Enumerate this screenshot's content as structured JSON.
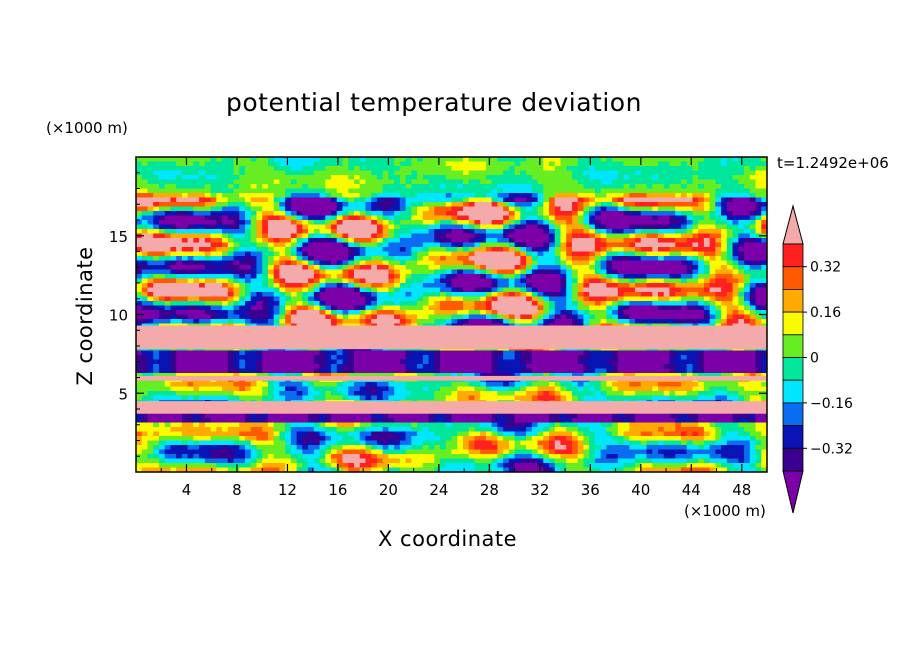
{
  "chart_data": {
    "type": "heatmap",
    "title": "potential temperature deviation",
    "xlabel": "X coordinate",
    "ylabel": "Z coordinate",
    "x_units": "(×1000 m)",
    "y_units": "(×1000 m)",
    "time_label": "t=1.2492e+06",
    "xlim": [
      0,
      50
    ],
    "ylim": [
      0,
      20
    ],
    "x_ticks": [
      4,
      8,
      12,
      16,
      20,
      24,
      28,
      32,
      36,
      40,
      44,
      48
    ],
    "y_ticks": [
      5,
      10,
      15
    ],
    "colorbar": {
      "levels": [
        -0.4,
        -0.32,
        -0.24,
        -0.16,
        -0.08,
        0,
        0.08,
        0.16,
        0.24,
        0.32,
        0.4
      ],
      "labeled_ticks": [
        0.32,
        0.16,
        0,
        -0.16,
        -0.32
      ],
      "tick_labels": [
        "0.32",
        "0.16",
        "0",
        "−0.16",
        "−0.32"
      ],
      "colors": [
        "#7b00a8",
        "#3a0090",
        "#0a14b4",
        "#0a6cf0",
        "#00e6ff",
        "#00e69a",
        "#66ee22",
        "#fafa00",
        "#ffaa00",
        "#ff5a00",
        "#ff2020",
        "#f4aaaa"
      ]
    },
    "bands": [
      {
        "z_min": 0,
        "z_max": 2.5,
        "description": "mixed small deviations"
      },
      {
        "z_min": 3.7,
        "z_max": 4.5,
        "value": 0.4
      },
      {
        "z_min": 5.8,
        "z_max": 6.1,
        "value": 0.4
      },
      {
        "z_min": 7.8,
        "z_max": 9.3,
        "value": 0.4
      },
      {
        "z_min": 18,
        "z_max": 20,
        "description": "near zero"
      }
    ]
  }
}
